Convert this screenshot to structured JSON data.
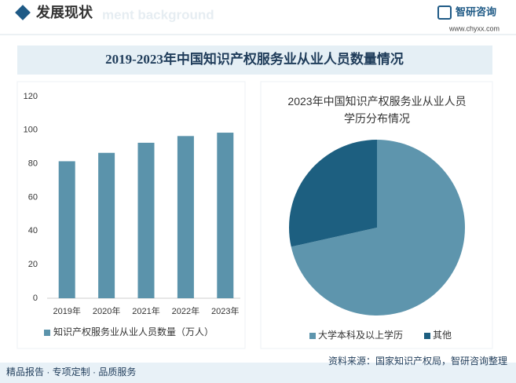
{
  "header": {
    "title": "发展现状",
    "watermark": "ment background",
    "logo": "智研咨询",
    "site": "www.chyxx.com"
  },
  "banner": {
    "title": "2019-2023年中国知识产权服务业从业人员数量情况"
  },
  "chart_data": [
    {
      "type": "bar",
      "categories": [
        "2019年",
        "2020年",
        "2021年",
        "2022年",
        "2023年"
      ],
      "series": [
        {
          "name": "知识产权服务业从业人员数量（万人）",
          "color": "#5b93ab",
          "values": [
            81.5,
            86.5,
            92.5,
            96.5,
            98.5
          ]
        }
      ],
      "ylim": [
        0,
        120
      ],
      "yticks": [
        0,
        20,
        40,
        60,
        80,
        100,
        120
      ],
      "grid": false
    },
    {
      "type": "pie",
      "title": "2023年中国知识产权服务业从业人员学历分布情况",
      "categories": [
        "大学本科及以上学历",
        "其他"
      ],
      "values": [
        71.5,
        28.5
      ],
      "colors": [
        "#5e95ad",
        "#1d5f80"
      ]
    }
  ],
  "footer": {
    "left": "精品报告 · 专项定制 · 品质服务",
    "source": "资料来源：国家知识产权局，智研咨询整理"
  }
}
